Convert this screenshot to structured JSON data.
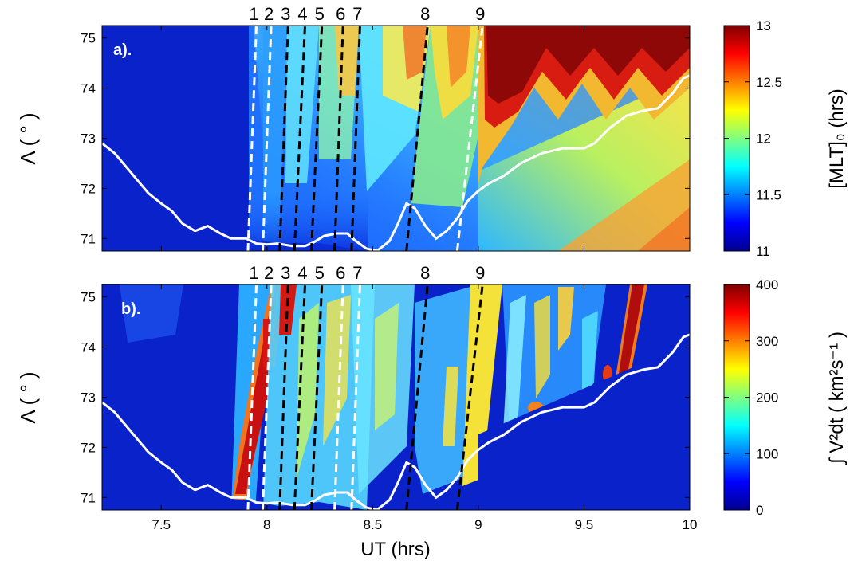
{
  "figure": {
    "xlabel": "UT (hrs)"
  },
  "chart_data": [
    {
      "type": "heatmap",
      "panel_label": "a).",
      "ylabel": "Λ ( ° )",
      "xlim": [
        7.22,
        10.0
      ],
      "ylim": [
        70.75,
        75.25
      ],
      "yticks": [
        71,
        72,
        73,
        74,
        75
      ],
      "xticks": [
        7.5,
        8,
        8.5,
        9,
        9.5,
        10
      ],
      "show_xtick_labels": false,
      "colorbar": {
        "label": "[MLT]₀   (hrs)",
        "min": 11,
        "max": 13,
        "ticks": [
          "11",
          "11.5",
          "12",
          "12.5",
          "13"
        ]
      },
      "boundary_curve": {
        "x": [
          7.22,
          7.28,
          7.33,
          7.38,
          7.44,
          7.5,
          7.55,
          7.6,
          7.66,
          7.72,
          7.78,
          7.83,
          7.9,
          7.95,
          8.0,
          8.05,
          8.12,
          8.18,
          8.22,
          8.27,
          8.33,
          8.38,
          8.42,
          8.47,
          8.52,
          8.58,
          8.62,
          8.66,
          8.7,
          8.75,
          8.8,
          8.85,
          8.9,
          8.95,
          9.0,
          9.05,
          9.12,
          9.2,
          9.3,
          9.4,
          9.5,
          9.55,
          9.62,
          9.7,
          9.78,
          9.85,
          9.92,
          9.97,
          10.0
        ],
        "y": [
          72.9,
          72.7,
          72.45,
          72.2,
          71.9,
          71.7,
          71.55,
          71.3,
          71.15,
          71.25,
          71.1,
          71.0,
          71.0,
          70.9,
          70.88,
          70.9,
          70.85,
          70.85,
          70.92,
          71.05,
          71.1,
          71.1,
          70.95,
          70.8,
          70.75,
          70.95,
          71.3,
          71.7,
          71.6,
          71.25,
          71.0,
          71.15,
          71.4,
          71.75,
          71.95,
          72.1,
          72.25,
          72.5,
          72.7,
          72.8,
          72.8,
          72.9,
          73.2,
          73.45,
          73.55,
          73.6,
          73.9,
          74.2,
          74.25
        ]
      },
      "event_lines": [
        {
          "label": "1",
          "color": "white",
          "x_bottom": 7.91,
          "x_top": 7.95
        },
        {
          "label": "2",
          "color": "white",
          "x_bottom": 7.98,
          "x_top": 8.02
        },
        {
          "label": "3",
          "color": "black",
          "x_bottom": 8.06,
          "x_top": 8.1
        },
        {
          "label": "4",
          "color": "black",
          "x_bottom": 8.13,
          "x_top": 8.18
        },
        {
          "label": "5",
          "color": "black",
          "x_bottom": 8.21,
          "x_top": 8.26
        },
        {
          "label": "6",
          "color": "black",
          "x_bottom": 8.32,
          "x_top": 8.36
        },
        {
          "label": "7",
          "color": "black",
          "x_bottom": 8.4,
          "x_top": 8.44
        },
        {
          "label": "8",
          "color": "black",
          "x_bottom": 8.66,
          "x_top": 8.76
        },
        {
          "label": "9",
          "color": "white",
          "x_bottom": 8.9,
          "x_top": 9.02
        }
      ]
    },
    {
      "type": "heatmap",
      "panel_label": "b).",
      "ylabel": "Λ ( ° )",
      "xlim": [
        7.22,
        10.0
      ],
      "ylim": [
        70.75,
        75.25
      ],
      "yticks": [
        71,
        72,
        73,
        74,
        75
      ],
      "xticks": [
        7.5,
        8,
        8.5,
        9,
        9.5,
        10
      ],
      "show_xtick_labels": true,
      "colorbar": {
        "label": "∫ V²dt  ( km²s⁻¹ )",
        "min": 0,
        "max": 400,
        "ticks": [
          "0",
          "100",
          "200",
          "300",
          "400"
        ]
      },
      "boundary_curve": {
        "x": [
          7.22,
          7.28,
          7.33,
          7.38,
          7.44,
          7.5,
          7.55,
          7.6,
          7.66,
          7.72,
          7.78,
          7.83,
          7.9,
          7.95,
          8.0,
          8.05,
          8.12,
          8.18,
          8.22,
          8.27,
          8.33,
          8.38,
          8.42,
          8.47,
          8.52,
          8.58,
          8.62,
          8.66,
          8.7,
          8.75,
          8.8,
          8.85,
          8.9,
          8.95,
          9.0,
          9.05,
          9.12,
          9.2,
          9.3,
          9.4,
          9.5,
          9.55,
          9.62,
          9.7,
          9.78,
          9.85,
          9.92,
          9.97,
          10.0
        ],
        "y": [
          72.9,
          72.7,
          72.45,
          72.2,
          71.9,
          71.7,
          71.55,
          71.3,
          71.15,
          71.25,
          71.1,
          71.0,
          71.0,
          70.9,
          70.88,
          70.9,
          70.85,
          70.85,
          70.92,
          71.05,
          71.1,
          71.1,
          70.95,
          70.8,
          70.75,
          70.95,
          71.3,
          71.7,
          71.6,
          71.25,
          71.0,
          71.15,
          71.4,
          71.75,
          71.95,
          72.1,
          72.25,
          72.5,
          72.7,
          72.8,
          72.8,
          72.9,
          73.2,
          73.45,
          73.55,
          73.6,
          73.9,
          74.2,
          74.25
        ]
      },
      "event_lines": [
        {
          "label": "1",
          "color": "white",
          "x_bottom": 7.91,
          "x_top": 7.95
        },
        {
          "label": "2",
          "color": "white",
          "x_bottom": 7.98,
          "x_top": 8.02
        },
        {
          "label": "3",
          "color": "black",
          "x_bottom": 8.06,
          "x_top": 8.1
        },
        {
          "label": "4",
          "color": "black",
          "x_bottom": 8.13,
          "x_top": 8.18
        },
        {
          "label": "5",
          "color": "black",
          "x_bottom": 8.21,
          "x_top": 8.26
        },
        {
          "label": "6",
          "color": "white",
          "x_bottom": 8.32,
          "x_top": 8.36
        },
        {
          "label": "7",
          "color": "white",
          "x_bottom": 8.4,
          "x_top": 8.44
        },
        {
          "label": "8",
          "color": "black",
          "x_bottom": 8.66,
          "x_top": 8.76
        },
        {
          "label": "9",
          "color": "black",
          "x_bottom": 8.9,
          "x_top": 9.02
        }
      ]
    }
  ]
}
